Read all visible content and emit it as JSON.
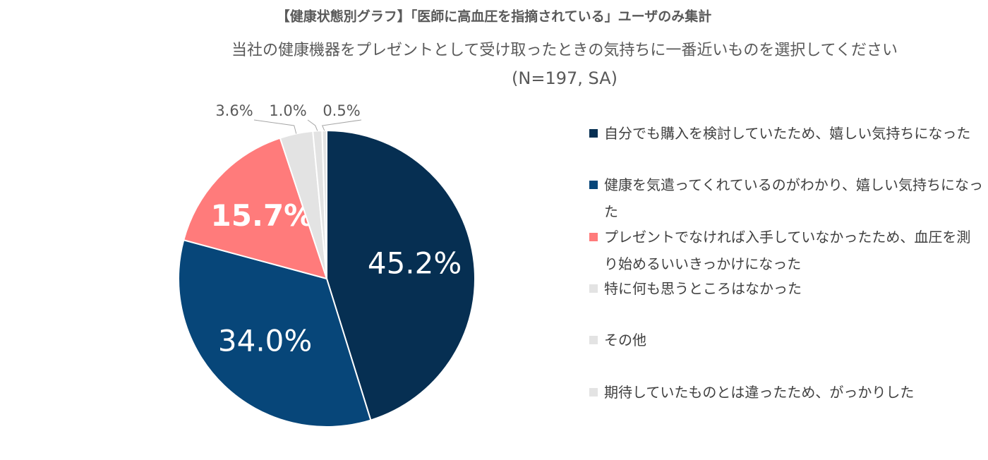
{
  "chart_data": {
    "type": "pie",
    "title": "【健康状態別グラフ】「医師に高血圧を指摘されている」ユーザのみ集計",
    "subtitle": "当社の健康機器をプレゼントとして受け取ったときの気持ちに一番近いものを選択してください",
    "sample_note": "(N=197, SA)",
    "categories": [
      "自分でも購入を検討していたため、嬉しい気持ちになった",
      "健康を気遣ってくれているのがわかり、嬉しい気持ちになった",
      "プレゼントでなければ入手していなかったため、血圧を測り始めるいいきっかけになった",
      "特に何も思うところはなかった",
      "その他",
      "期待していたものとは違ったため、がっかりした"
    ],
    "values": [
      45.2,
      34.0,
      15.7,
      3.6,
      1.0,
      0.5
    ],
    "value_labels": [
      "45.2%",
      "34.0%",
      "15.7%",
      "3.6%",
      "1.0%",
      "0.5%"
    ],
    "colors": [
      "#062f52",
      "#074679",
      "#ff7b7b",
      "#e3e3e3",
      "#e3e3e3",
      "#e3e3e3"
    ],
    "legend": "right"
  }
}
